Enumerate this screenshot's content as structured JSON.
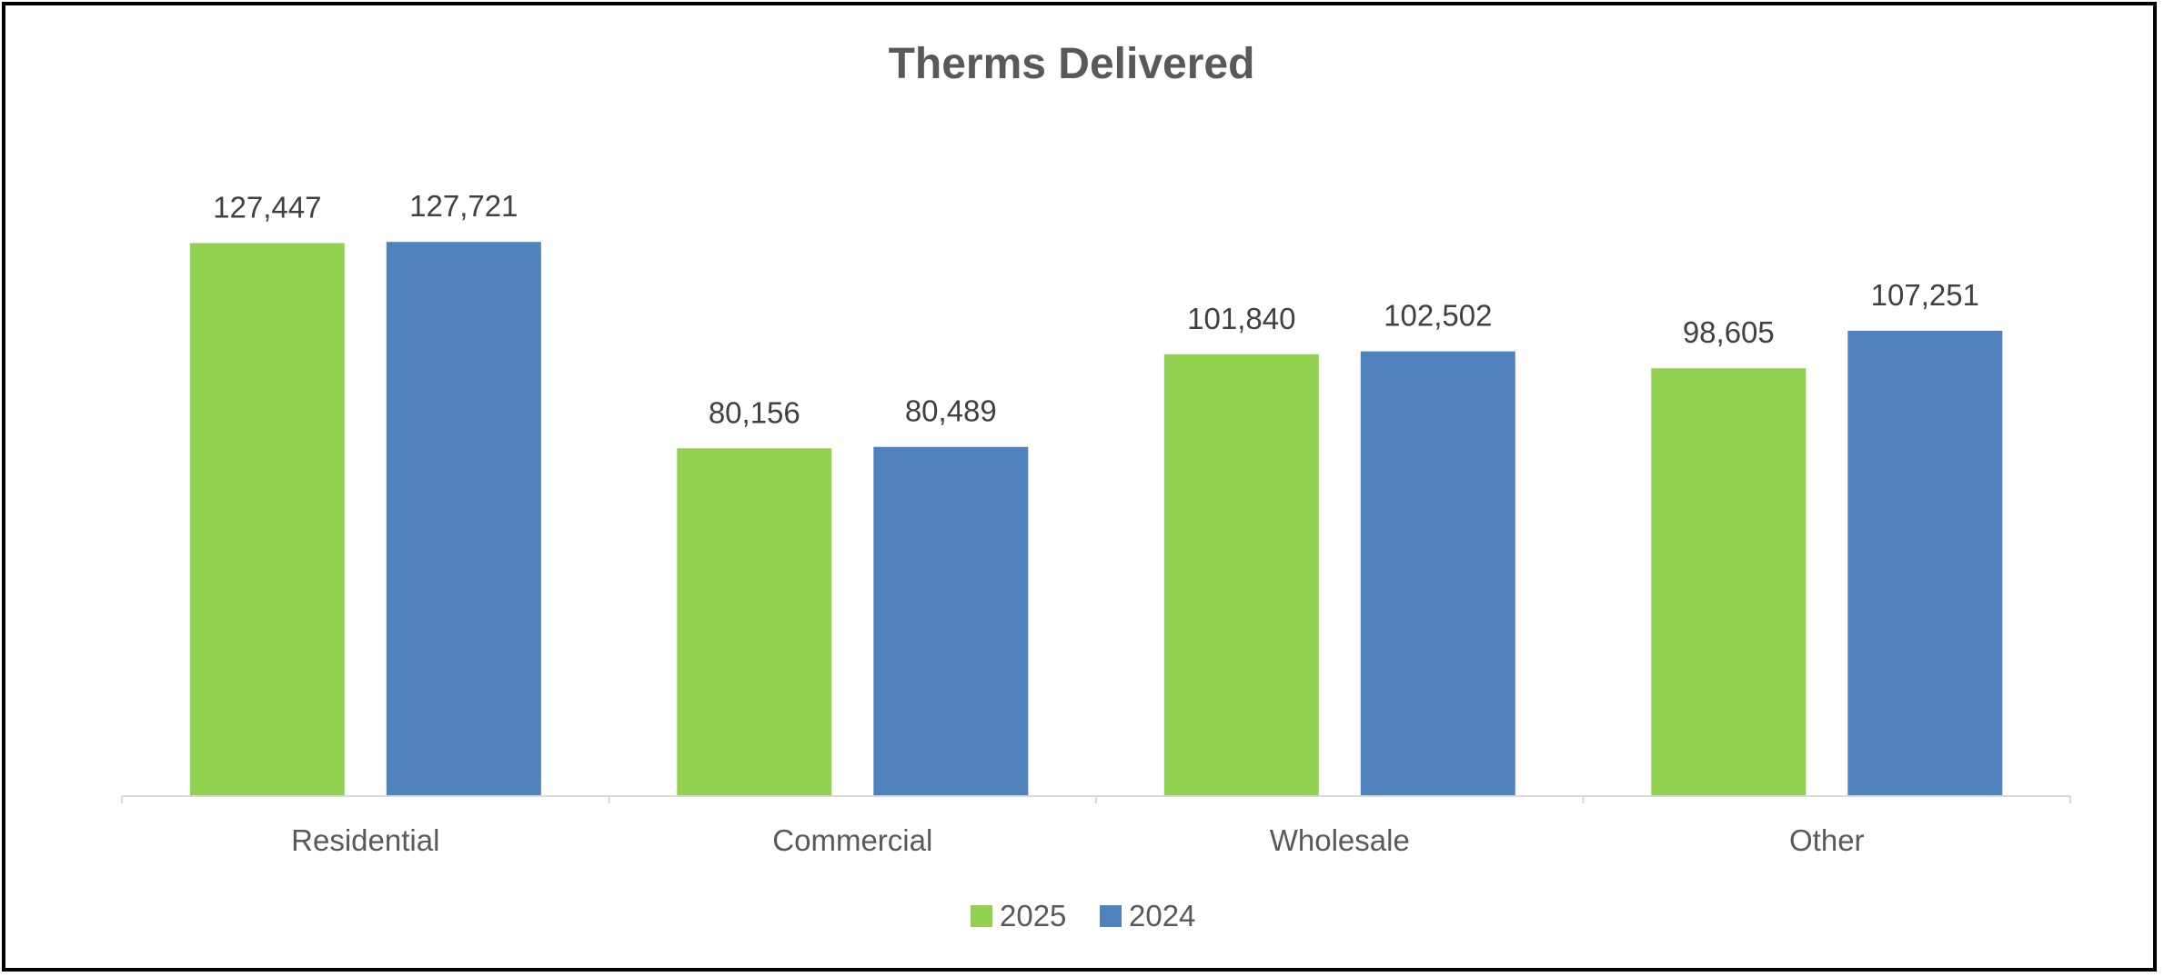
{
  "chart_data": {
    "type": "bar",
    "title": "Therms Delivered",
    "categories": [
      "Residential",
      "Commercial",
      "Wholesale",
      "Other"
    ],
    "series": [
      {
        "name": "2025",
        "color": "#92d050",
        "values": [
          127447,
          80156,
          101840,
          98605
        ],
        "labels": [
          "127,447",
          "80,156",
          "101,840",
          "98,605"
        ]
      },
      {
        "name": "2024",
        "color": "#4f81bd",
        "values": [
          127721,
          80489,
          102502,
          107251
        ],
        "labels": [
          "127,721",
          "80,489",
          "102,502",
          "107,251"
        ]
      }
    ],
    "ylim": [
      0,
      140000
    ],
    "grid": false,
    "legend_position": "bottom"
  }
}
